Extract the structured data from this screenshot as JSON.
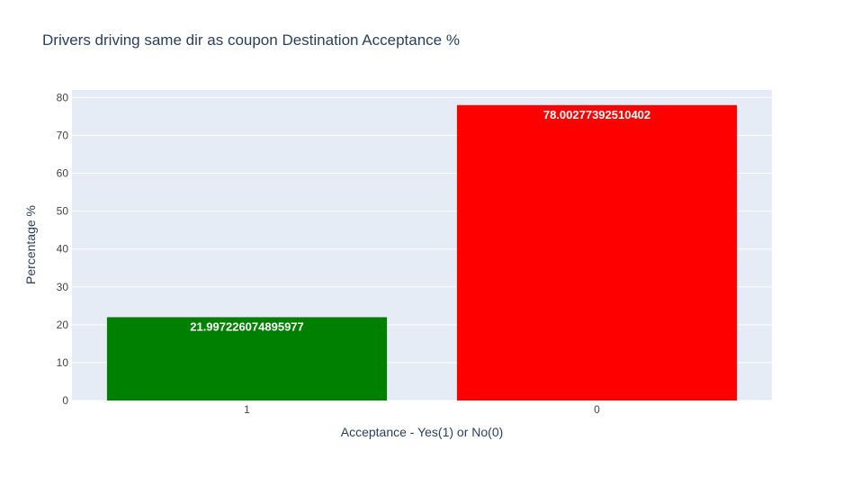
{
  "chart_data": {
    "type": "bar",
    "title": "Drivers driving same dir as coupon Destination Acceptance %",
    "xlabel": "Acceptance - Yes(1) or No(0)",
    "ylabel": "Percentage %",
    "categories": [
      "1",
      "0"
    ],
    "values": [
      21.997226074895977,
      78.00277392510402
    ],
    "value_labels": [
      "21.997226074895977",
      "78.00277392510402"
    ],
    "bar_colors": [
      "#008000",
      "#ff0000"
    ],
    "ylim": [
      0,
      82
    ],
    "yticks": [
      0,
      10,
      20,
      30,
      40,
      50,
      60,
      70,
      80
    ],
    "grid": true,
    "colors": {
      "plot_background": "#e5ecf6",
      "grid": "#ffffff",
      "text": "#2a3f5f",
      "tick_text": "#444444",
      "bar_label_text": "#ffffff"
    }
  }
}
